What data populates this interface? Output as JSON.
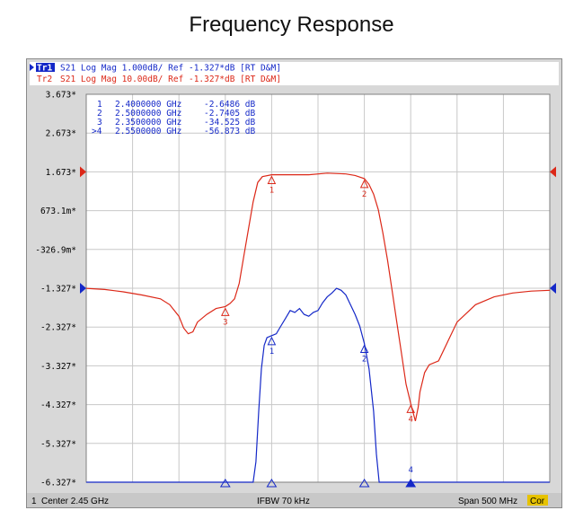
{
  "page": {
    "title": "Frequency Response"
  },
  "traces": {
    "tr1": {
      "tag": "Tr1",
      "text": "S21 Log Mag 1.000dB/ Ref -1.327*dB [RT D&M]",
      "color": "#1428c8"
    },
    "tr2": {
      "tag": "Tr2",
      "text": "S21 Log Mag 10.00dB/ Ref -1.327*dB [RT D&M]",
      "color": "#dc2818"
    }
  },
  "marker_table": [
    {
      "label": "1",
      "freq": "2.4000000 GHz",
      "value": "-2.6486 dB"
    },
    {
      "label": "2",
      "freq": "2.5000000 GHz",
      "value": "-2.7405 dB"
    },
    {
      "label": "3",
      "freq": "2.3500000 GHz",
      "value": "-34.525 dB"
    },
    {
      "label": ">4",
      "freq": "2.5500000 GHz",
      "value": "-56.873 dB"
    }
  ],
  "status_bar": {
    "channel": "1",
    "center": "Center 2.45 GHz",
    "ifbw": "IFBW 70 kHz",
    "span": "Span 500 MHz",
    "cor": "Cor"
  },
  "chart_data": {
    "type": "line",
    "x_unit": "GHz",
    "xlim": [
      2.2,
      2.7
    ],
    "ylim": [
      -6.327,
      3.673
    ],
    "y_tick_labels": [
      "3.673*",
      "2.673*",
      "1.673*",
      "673.1m*",
      "-326.9m*",
      "-1.327*",
      "-2.327*",
      "-3.327*",
      "-4.327*",
      "-5.327*",
      "-6.327*"
    ],
    "grid": true,
    "reference_level": -1.327,
    "series": [
      {
        "name": "Tr1",
        "color": "#1428c8",
        "points": [
          [
            2.2,
            -6.327
          ],
          [
            2.38,
            -6.327
          ],
          [
            2.383,
            -5.8
          ],
          [
            2.386,
            -4.5
          ],
          [
            2.389,
            -3.4
          ],
          [
            2.392,
            -2.8
          ],
          [
            2.395,
            -2.6
          ],
          [
            2.4,
            -2.55
          ],
          [
            2.405,
            -2.5
          ],
          [
            2.41,
            -2.3
          ],
          [
            2.415,
            -2.1
          ],
          [
            2.42,
            -1.9
          ],
          [
            2.425,
            -1.95
          ],
          [
            2.43,
            -1.85
          ],
          [
            2.435,
            -2.0
          ],
          [
            2.44,
            -2.05
          ],
          [
            2.445,
            -1.95
          ],
          [
            2.45,
            -1.9
          ],
          [
            2.455,
            -1.7
          ],
          [
            2.46,
            -1.55
          ],
          [
            2.465,
            -1.45
          ],
          [
            2.47,
            -1.33
          ],
          [
            2.475,
            -1.38
          ],
          [
            2.48,
            -1.5
          ],
          [
            2.485,
            -1.75
          ],
          [
            2.49,
            -2.0
          ],
          [
            2.495,
            -2.3
          ],
          [
            2.5,
            -2.75
          ],
          [
            2.505,
            -3.4
          ],
          [
            2.51,
            -4.5
          ],
          [
            2.513,
            -5.6
          ],
          [
            2.516,
            -6.327
          ],
          [
            2.7,
            -6.327
          ]
        ]
      },
      {
        "name": "Tr2",
        "color": "#dc2818",
        "points": [
          [
            2.2,
            -1.33
          ],
          [
            2.22,
            -1.36
          ],
          [
            2.24,
            -1.42
          ],
          [
            2.26,
            -1.5
          ],
          [
            2.28,
            -1.6
          ],
          [
            2.29,
            -1.75
          ],
          [
            2.3,
            -2.05
          ],
          [
            2.305,
            -2.35
          ],
          [
            2.31,
            -2.5
          ],
          [
            2.315,
            -2.45
          ],
          [
            2.32,
            -2.2
          ],
          [
            2.33,
            -2.0
          ],
          [
            2.34,
            -1.85
          ],
          [
            2.35,
            -1.8
          ],
          [
            2.355,
            -1.72
          ],
          [
            2.36,
            -1.6
          ],
          [
            2.365,
            -1.2
          ],
          [
            2.37,
            -0.5
          ],
          [
            2.375,
            0.2
          ],
          [
            2.38,
            0.9
          ],
          [
            2.385,
            1.4
          ],
          [
            2.39,
            1.55
          ],
          [
            2.4,
            1.6
          ],
          [
            2.42,
            1.6
          ],
          [
            2.44,
            1.6
          ],
          [
            2.46,
            1.64
          ],
          [
            2.48,
            1.62
          ],
          [
            2.49,
            1.58
          ],
          [
            2.5,
            1.5
          ],
          [
            2.505,
            1.35
          ],
          [
            2.51,
            1.1
          ],
          [
            2.515,
            0.7
          ],
          [
            2.52,
            0.1
          ],
          [
            2.525,
            -0.6
          ],
          [
            2.53,
            -1.4
          ],
          [
            2.535,
            -2.2
          ],
          [
            2.54,
            -3.0
          ],
          [
            2.545,
            -3.8
          ],
          [
            2.55,
            -4.3
          ],
          [
            2.555,
            -4.75
          ],
          [
            2.558,
            -4.4
          ],
          [
            2.56,
            -4.0
          ],
          [
            2.565,
            -3.5
          ],
          [
            2.57,
            -3.3
          ],
          [
            2.58,
            -3.2
          ],
          [
            2.59,
            -2.7
          ],
          [
            2.6,
            -2.2
          ],
          [
            2.62,
            -1.75
          ],
          [
            2.64,
            -1.55
          ],
          [
            2.66,
            -1.45
          ],
          [
            2.68,
            -1.4
          ],
          [
            2.7,
            -1.38
          ]
        ]
      }
    ],
    "markers": [
      {
        "trace": "Tr2",
        "label": "1",
        "x": 2.4,
        "y": 1.6
      },
      {
        "trace": "Tr2",
        "label": "2",
        "x": 2.5,
        "y": 1.5
      },
      {
        "trace": "Tr2",
        "label": "3",
        "x": 2.35,
        "y": -1.8
      },
      {
        "trace": "Tr2",
        "label": "4",
        "x": 2.55,
        "y": -4.3
      },
      {
        "trace": "Tr1",
        "label": "1",
        "x": 2.4,
        "y": -2.55
      },
      {
        "trace": "Tr1",
        "label": "2",
        "x": 2.5,
        "y": -2.75
      }
    ]
  }
}
